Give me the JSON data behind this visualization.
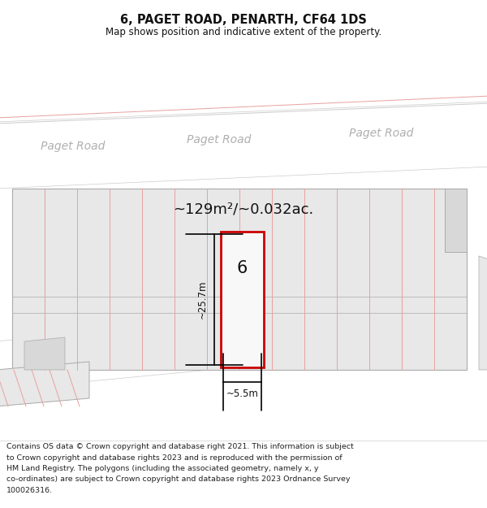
{
  "title_line1": "6, PAGET ROAD, PENARTH, CF64 1DS",
  "title_line2": "Map shows position and indicative extent of the property.",
  "area_text": "~129m²/~0.032ac.",
  "dimension_width": "~5.5m",
  "dimension_height": "~25.7m",
  "property_number": "6",
  "road_label": "Paget Road",
  "footer_lines": [
    "Contains OS data © Crown copyright and database right 2021. This information is subject",
    "to Crown copyright and database rights 2023 and is reproduced with the permission of",
    "HM Land Registry. The polygons (including the associated geometry, namely x, y",
    "co-ordinates) are subject to Crown copyright and database rights 2023 Ordnance Survey",
    "100026316."
  ],
  "bg_color": "#f5f5f5",
  "road_color": "#ffffff",
  "plot_fill": "#e8e8e8",
  "plot_fill2": "#e0e0e0",
  "property_fill": "#f0f0f0",
  "property_border": "#cc0000",
  "grid_line_color": "#e8a0a0",
  "gray_line_color": "#bbbbbb",
  "road_label_color": "#b0b0b0",
  "header_bg": "#ffffff",
  "footer_bg": "#ffffff",
  "dim_line_color": "#000000",
  "text_color": "#111111"
}
